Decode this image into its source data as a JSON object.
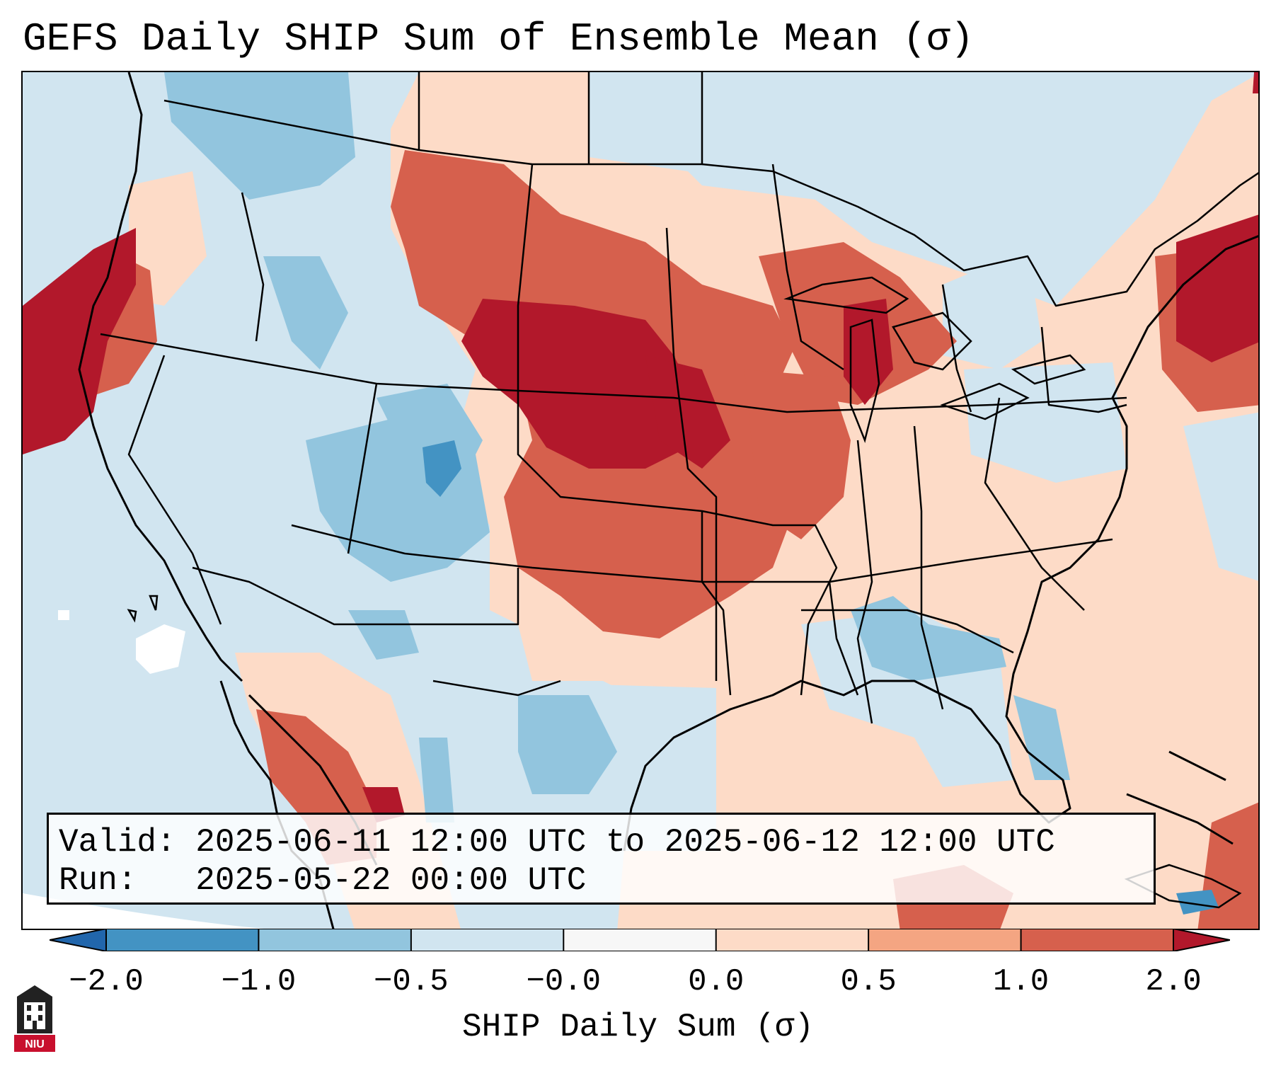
{
  "title": "GEFS Daily SHIP Sum of Ensemble Mean (σ)",
  "info": {
    "valid_label": "Valid:",
    "valid_value": "2025-06-11 12:00 UTC to 2025-06-12 12:00 UTC",
    "run_label": "Run:",
    "run_value": "2025-05-22 00:00 UTC"
  },
  "colorbar": {
    "label": "SHIP Daily Sum (σ)",
    "ticks": [
      "−2.0",
      "−1.0",
      "−0.5",
      "−0.0",
      "0.0",
      "0.5",
      "1.0",
      "2.0"
    ],
    "bins": [
      {
        "from": -2.0,
        "to": -1.0,
        "color": "#4393c3"
      },
      {
        "from": -1.0,
        "to": -0.5,
        "color": "#92c5de"
      },
      {
        "from": -0.5,
        "to": -0.0,
        "color": "#d1e5f0"
      },
      {
        "from": -0.0,
        "to": 0.0,
        "color": "#f7f7f7"
      },
      {
        "from": 0.0,
        "to": 0.5,
        "color": "#fddbc7"
      },
      {
        "from": 0.5,
        "to": 1.0,
        "color": "#f4a582"
      },
      {
        "from": 1.0,
        "to": 2.0,
        "color": "#d6604d"
      }
    ],
    "under_color": "#2166ac",
    "over_color": "#b2182b"
  },
  "map": {
    "projection": "Lambert Conformal (CONUS)",
    "field_regions": [
      {
        "name": "northern-plains-max",
        "level": 2.5,
        "color": "#b2182b"
      },
      {
        "name": "pacific-northwest-coast",
        "level": 2.5,
        "color": "#b2182b"
      },
      {
        "name": "new-england-offshore",
        "level": 2.5,
        "color": "#b2182b"
      },
      {
        "name": "southern-plains-midwest",
        "level": 1.5,
        "color": "#d6604d"
      },
      {
        "name": "great-lakes-region",
        "level": 1.5,
        "color": "#d6604d"
      },
      {
        "name": "southeast-lean-positive",
        "level": 0.3,
        "color": "#fddbc7"
      },
      {
        "name": "intermountain-west",
        "level": -0.7,
        "color": "#92c5de"
      },
      {
        "name": "colorado-minimum",
        "level": -1.5,
        "color": "#4393c3"
      },
      {
        "name": "georgia-florida",
        "level": -0.7,
        "color": "#92c5de"
      }
    ]
  },
  "logo": {
    "text": "NIU"
  }
}
